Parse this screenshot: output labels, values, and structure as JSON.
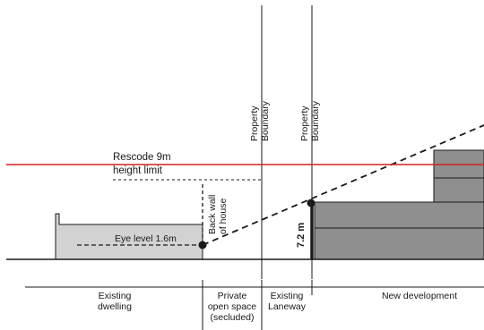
{
  "colors": {
    "height_limit_line": "#d61f1f",
    "existing_dwelling_fill": "#d2d2d2",
    "new_development_fill": "#8f8f8f",
    "outline": "#1a1a1a"
  },
  "labels": {
    "property_boundary_1": [
      "Property",
      "Boundary"
    ],
    "property_boundary_2": [
      "Property",
      "Boundary"
    ],
    "height_limit": [
      "Rescode 9m",
      "height limit"
    ],
    "back_wall": [
      "Back wall",
      "of house"
    ],
    "eye_level": "Eye level 1.6m",
    "wall_height": "7.2 m"
  },
  "zones": [
    {
      "name": "existing-dwelling",
      "lines": [
        "Existing",
        "dwelling"
      ]
    },
    {
      "name": "private-open-space",
      "lines": [
        "Private",
        "open space",
        "(secluded)"
      ]
    },
    {
      "name": "existing-laneway",
      "lines": [
        "Existing",
        "Laneway"
      ]
    },
    {
      "name": "new-development",
      "lines": [
        "New development"
      ]
    }
  ]
}
